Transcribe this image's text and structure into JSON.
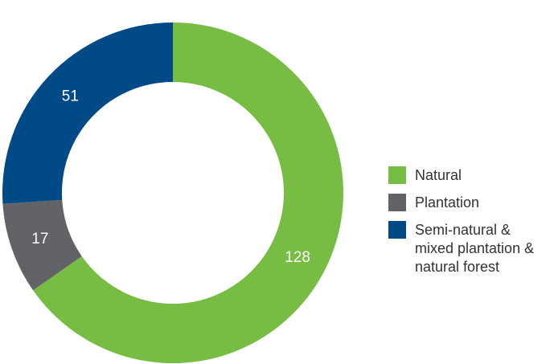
{
  "chart_data": {
    "type": "donut",
    "categories": [
      "Natural",
      "Plantation",
      "Semi-natural & mixed plantation & natural forest"
    ],
    "values": [
      128,
      17,
      51
    ],
    "colors": [
      "#77bc43",
      "#626366",
      "#004b87"
    ]
  }
}
